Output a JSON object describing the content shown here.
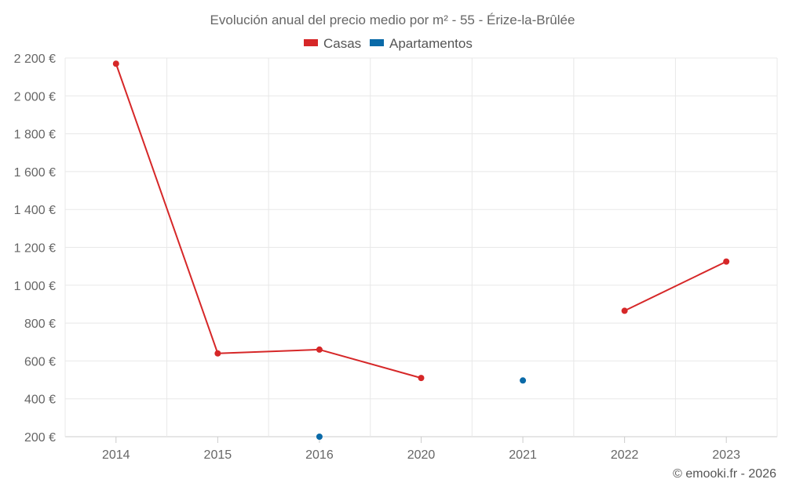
{
  "chart_data": {
    "type": "line",
    "title": "Evolución anual del precio medio por m² - 55 - Érize-la-Brûlée",
    "categories": [
      "2014",
      "2015",
      "2016",
      "2020",
      "2021",
      "2022",
      "2023"
    ],
    "y_ticks": [
      "200 €",
      "400 €",
      "600 €",
      "800 €",
      "1 000 €",
      "1 200 €",
      "1 400 €",
      "1 600 €",
      "1 800 €",
      "2 000 €",
      "2 200 €"
    ],
    "ylim": [
      200,
      2200
    ],
    "xlabel": "",
    "ylabel": "",
    "grid": true,
    "legend_position": "top-center",
    "series": [
      {
        "name": "Casas",
        "color": "#d62728",
        "values": [
          2170,
          640,
          660,
          510,
          null,
          865,
          1125
        ]
      },
      {
        "name": "Apartamentos",
        "color": "#0a6aa8",
        "values": [
          null,
          null,
          200,
          null,
          497,
          null,
          null
        ]
      }
    ]
  },
  "credit": "© emooki.fr - 2026"
}
